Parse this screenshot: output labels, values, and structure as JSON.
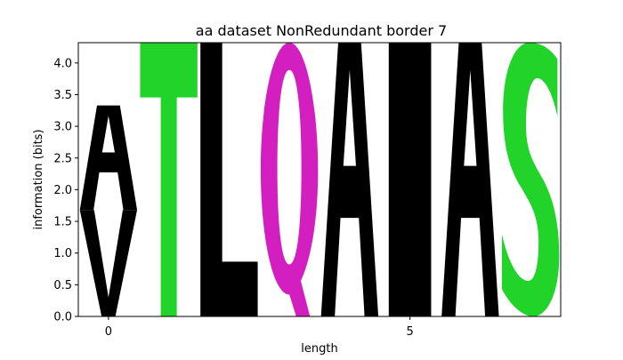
{
  "chart_data": {
    "type": "sequence-logo",
    "title": "aa dataset NonRedundant border 7",
    "xlabel": "length",
    "ylabel": "information (bits)",
    "xlim": [
      -0.5,
      7.5
    ],
    "ylim": [
      0.0,
      4.32
    ],
    "xticks": [
      0,
      5
    ],
    "xtick_labels": [
      "0",
      "5"
    ],
    "yticks": [
      0.0,
      0.5,
      1.0,
      1.5,
      2.0,
      2.5,
      3.0,
      3.5,
      4.0
    ],
    "ytick_labels": [
      "0.0",
      "0.5",
      "1.0",
      "1.5",
      "2.0",
      "2.5",
      "3.0",
      "3.5",
      "4.0"
    ],
    "positions": [
      {
        "x": 0,
        "letters": [
          {
            "letter": "V",
            "bottom": 0.0,
            "height": 1.68,
            "color": "#000000"
          },
          {
            "letter": "A",
            "bottom": 1.68,
            "height": 1.65,
            "color": "#000000"
          }
        ]
      },
      {
        "x": 1,
        "letters": [
          {
            "letter": "T",
            "bottom": 0.0,
            "height": 4.32,
            "color": "#22d42a"
          }
        ]
      },
      {
        "x": 2,
        "letters": [
          {
            "letter": "L",
            "bottom": 0.0,
            "height": 4.32,
            "color": "#000000"
          }
        ]
      },
      {
        "x": 3,
        "letters": [
          {
            "letter": "Q",
            "bottom": 0.0,
            "height": 4.32,
            "color": "#d31fbf"
          }
        ]
      },
      {
        "x": 4,
        "letters": [
          {
            "letter": "A",
            "bottom": 0.0,
            "height": 4.32,
            "color": "#000000"
          }
        ]
      },
      {
        "x": 5,
        "letters": [
          {
            "letter": "I",
            "bottom": 0.0,
            "height": 4.32,
            "color": "#000000"
          }
        ]
      },
      {
        "x": 6,
        "letters": [
          {
            "letter": "A",
            "bottom": 0.0,
            "height": 4.32,
            "color": "#000000"
          }
        ]
      },
      {
        "x": 7,
        "letters": [
          {
            "letter": "S",
            "bottom": 0.0,
            "height": 4.32,
            "color": "#22d42a"
          }
        ]
      }
    ]
  }
}
